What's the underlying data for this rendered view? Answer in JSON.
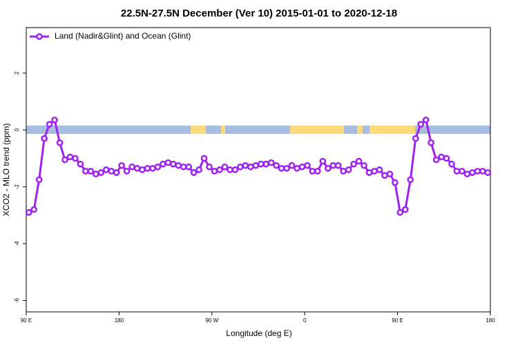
{
  "chart_data": {
    "type": "line",
    "title": "22.5N-27.5N December (Ver 10)   2015-01-01 to 2020-12-18",
    "x_label": "Longitude (deg E)",
    "y_label": "XCO2 - MLO trend (ppm)",
    "xlim": [
      90,
      540
    ],
    "xticks": [
      {
        "value": 90,
        "label": "90 E"
      },
      180,
      {
        "value": 270,
        "label": "90 W"
      },
      {
        "value": 360,
        "label": "0"
      },
      {
        "value": 450,
        "label": "90 E"
      },
      {
        "value": 540,
        "label": "180"
      }
    ],
    "ylim": [
      -6.4,
      3.6
    ],
    "yticks": [
      -6,
      -4,
      -2,
      0,
      2
    ],
    "legend": "top-left",
    "x": [
      92.5,
      97.5,
      102.5,
      107.5,
      112.5,
      117.5,
      122.5,
      127.5,
      132.5,
      137.5,
      142.5,
      147.5,
      152.5,
      157.5,
      162.5,
      167.5,
      172.5,
      177.5,
      182.5,
      187.5,
      192.5,
      197.5,
      202.5,
      207.5,
      212.5,
      217.5,
      222.5,
      227.5,
      232.5,
      237.5,
      242.5,
      247.5,
      252.5,
      257.5,
      262.5,
      267.5,
      272.5,
      277.5,
      282.5,
      287.5,
      292.5,
      297.5,
      302.5,
      307.5,
      312.5,
      317.5,
      322.5,
      327.5,
      332.5,
      337.5,
      342.5,
      347.5,
      352.5,
      357.5,
      362.5,
      367.5,
      372.5,
      377.5,
      382.5,
      387.5,
      392.5,
      397.5,
      402.5,
      407.5,
      412.5,
      417.5,
      422.5,
      427.5,
      432.5,
      437.5,
      442.5,
      447.5,
      452.5,
      457.5,
      462.5,
      467.5,
      472.5,
      477.5,
      482.5,
      487.5,
      492.5,
      497.5,
      502.5,
      507.5,
      512.5,
      517.5,
      522.5,
      527.5,
      532.5,
      537.5
    ],
    "series": [
      {
        "name": "Land (Nadir&Glint) and Ocean (Glint)",
        "color": "#a020f0",
        "values": [
          -2.9,
          -2.8,
          -1.75,
          -0.3,
          0.2,
          0.35,
          -0.45,
          -1.05,
          -0.95,
          -1.0,
          -1.2,
          -1.45,
          -1.45,
          -1.55,
          -1.5,
          -1.4,
          -1.45,
          -1.5,
          -1.25,
          -1.45,
          -1.3,
          -1.35,
          -1.4,
          -1.35,
          -1.35,
          -1.3,
          -1.2,
          -1.15,
          -1.2,
          -1.25,
          -1.3,
          -1.3,
          -1.5,
          -1.4,
          -1.0,
          -1.3,
          -1.45,
          -1.4,
          -1.3,
          -1.4,
          -1.4,
          -1.3,
          -1.25,
          -1.3,
          -1.25,
          -1.2,
          -1.2,
          -1.15,
          -1.25,
          -1.35,
          -1.35,
          -1.25,
          -1.35,
          -1.3,
          -1.25,
          -1.45,
          -1.45,
          -1.1,
          -1.35,
          -1.25,
          -1.25,
          -1.45,
          -1.4,
          -1.2,
          -1.1,
          -1.25,
          -1.5,
          -1.45,
          -1.4,
          -1.6,
          -1.55,
          -1.85,
          -2.9,
          -2.8,
          -1.75,
          -0.3,
          0.2,
          0.35,
          -0.45,
          -1.05,
          -0.95,
          -1.0,
          -1.2,
          -1.45,
          -1.45,
          -1.55,
          -1.5,
          -1.45,
          -1.45,
          -1.5
        ]
      }
    ]
  }
}
